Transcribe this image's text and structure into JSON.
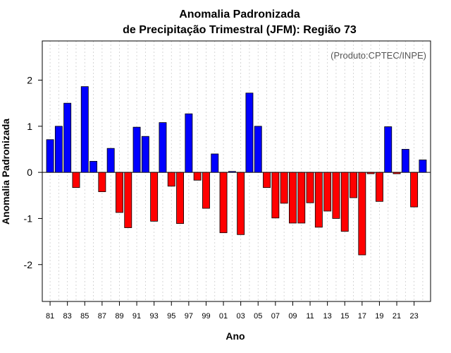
{
  "chart_data": {
    "type": "bar",
    "title_line1": "Anomalia Padronizada",
    "title_line2": "de Precipitação Trimestral (JFM): Região 73",
    "xlabel": "Ano",
    "ylabel": "Anomalia Padronizada",
    "source": "(Produto:CPTEC/INPE)",
    "ylim": [
      -2.8,
      2.85
    ],
    "yticks": [
      -2,
      -1,
      0,
      1,
      2
    ],
    "ytick_labels": [
      "-2",
      "-1",
      "0",
      "1",
      "2"
    ],
    "x_tick_labels": [
      "81",
      "83",
      "85",
      "87",
      "89",
      "91",
      "93",
      "95",
      "97",
      "99",
      "01",
      "03",
      "05",
      "07",
      "09",
      "11",
      "13",
      "15",
      "17",
      "19",
      "21",
      "23"
    ],
    "years": [
      "1981",
      "1982",
      "1983",
      "1984",
      "1985",
      "1986",
      "1987",
      "1988",
      "1989",
      "1990",
      "1991",
      "1992",
      "1993",
      "1994",
      "1995",
      "1996",
      "1997",
      "1998",
      "1999",
      "2000",
      "2001",
      "2002",
      "2003",
      "2004",
      "2005",
      "2006",
      "2007",
      "2008",
      "2009",
      "2010",
      "2011",
      "2012",
      "2013",
      "2014",
      "2015",
      "2016",
      "2017",
      "2018",
      "2019",
      "2020",
      "2021",
      "2022",
      "2023",
      "2024"
    ],
    "values": [
      0.71,
      1.0,
      1.5,
      -0.33,
      1.86,
      0.24,
      -0.42,
      0.52,
      -0.87,
      -1.2,
      0.98,
      0.78,
      -1.06,
      1.08,
      -0.3,
      -1.11,
      1.27,
      -0.17,
      -0.78,
      0.4,
      -1.31,
      0.02,
      -1.35,
      1.72,
      1.0,
      -0.33,
      -0.99,
      -0.67,
      -1.1,
      -1.1,
      -0.66,
      -1.19,
      -0.84,
      -1.0,
      -1.28,
      -0.55,
      -1.79,
      -0.03,
      -0.63,
      0.99,
      -0.03,
      0.5,
      -0.75,
      0.27
    ],
    "colors": {
      "positive": "#0000ff",
      "negative": "#ff0000",
      "grid": "#cccccc",
      "zero_line": "#000000",
      "frame": "#000000"
    },
    "grid": true
  }
}
